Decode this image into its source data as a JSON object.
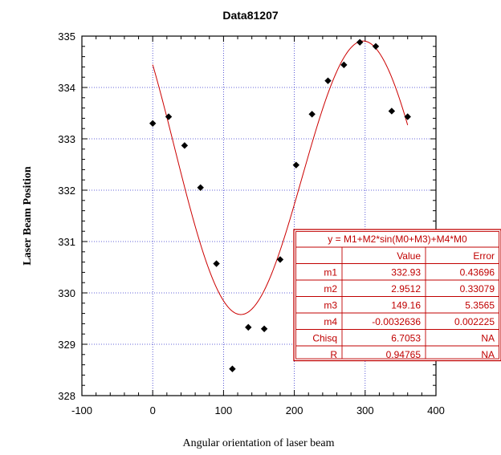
{
  "chart_data": {
    "type": "scatter",
    "title": "Data81207",
    "xlabel": "Angular orientation of laser beam",
    "ylabel": "Laser Beam Position",
    "xlim": [
      -100,
      400
    ],
    "ylim": [
      328,
      335
    ],
    "x_ticks": [
      -100,
      0,
      100,
      200,
      300,
      400
    ],
    "y_ticks": [
      328,
      329,
      330,
      331,
      332,
      333,
      334,
      335
    ],
    "grid": true,
    "colors": {
      "points": "#000000",
      "fit": "#cc0000",
      "grid": "#3333cc",
      "box": "#c00000"
    },
    "points": [
      {
        "x": 0,
        "y": 333.3
      },
      {
        "x": 22.5,
        "y": 333.43
      },
      {
        "x": 45,
        "y": 332.87
      },
      {
        "x": 67.5,
        "y": 332.05
      },
      {
        "x": 90,
        "y": 330.57
      },
      {
        "x": 112.5,
        "y": 328.52
      },
      {
        "x": 135,
        "y": 329.33
      },
      {
        "x": 157.5,
        "y": 329.3
      },
      {
        "x": 180,
        "y": 330.65
      },
      {
        "x": 202.5,
        "y": 332.49
      },
      {
        "x": 225,
        "y": 333.48
      },
      {
        "x": 247.5,
        "y": 334.13
      },
      {
        "x": 270,
        "y": 334.44
      },
      {
        "x": 292.5,
        "y": 334.88
      },
      {
        "x": 315,
        "y": 334.8
      },
      {
        "x": 337.5,
        "y": 333.54
      },
      {
        "x": 360,
        "y": 333.43
      }
    ],
    "fit": {
      "equation": "y = M1+M2*sin(M0+M3)+M4*M0",
      "x_range": [
        0,
        360
      ],
      "params": {
        "m1": 332.93,
        "m2": 2.9512,
        "m3": 149.16,
        "m4": -0.0032636
      }
    },
    "fit_table": {
      "headers": [
        "",
        "Value",
        "Error"
      ],
      "rows": [
        [
          "m1",
          "332.93",
          "0.43696"
        ],
        [
          "m2",
          "2.9512",
          "0.33079"
        ],
        [
          "m3",
          "149.16",
          "5.3565"
        ],
        [
          "m4",
          "-0.0032636",
          "0.002225"
        ],
        [
          "Chisq",
          "6.7053",
          "NA"
        ],
        [
          "R",
          "0.94765",
          "NA"
        ]
      ]
    }
  }
}
